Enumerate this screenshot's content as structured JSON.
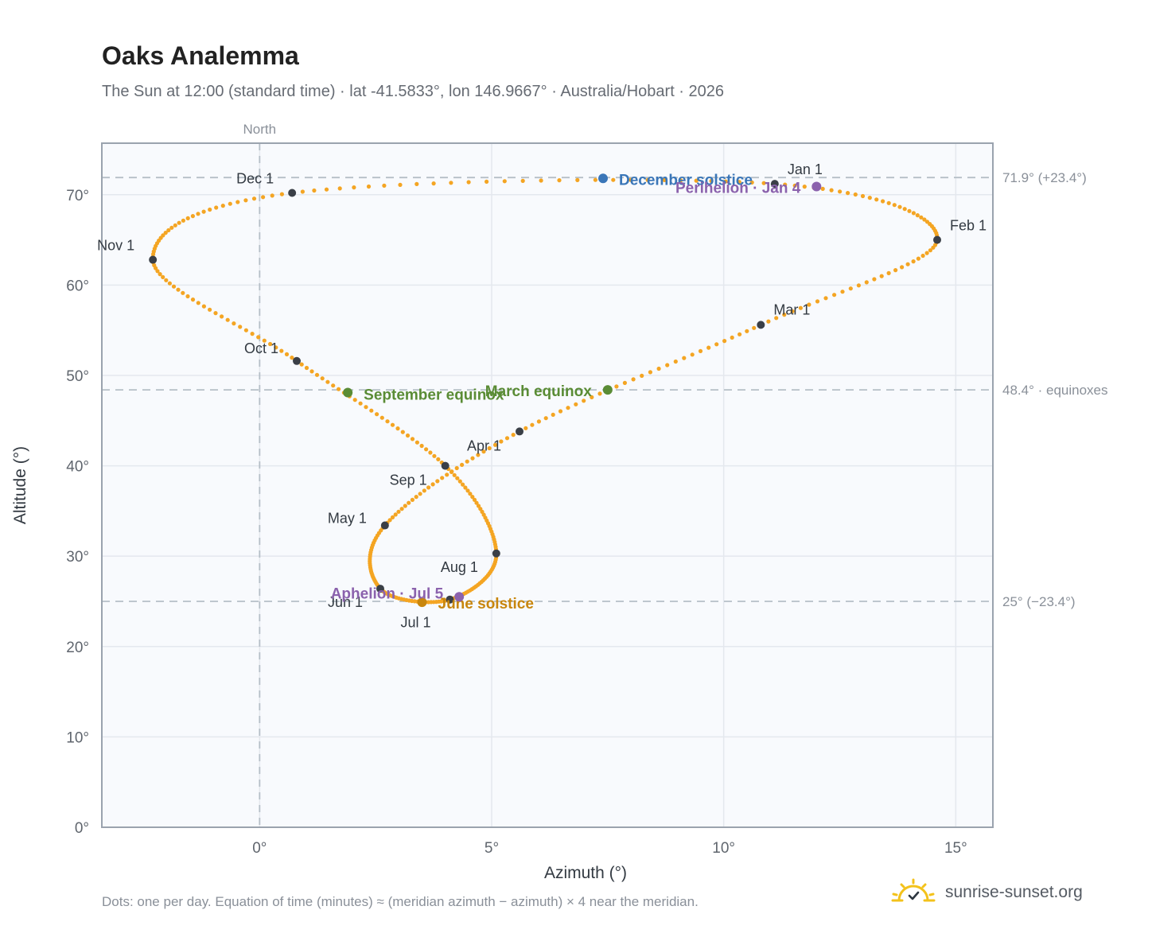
{
  "header": {
    "title": "Oaks Analemma",
    "subtitle": "The Sun at 12:00 (standard time) · lat -41.5833°, lon 146.9667° · Australia/Hobart · 2026"
  },
  "footer": {
    "note": "Dots: one per day. Equation of time (minutes) ≈ (meridian azimuth − azimuth) × 4 near the meridian.",
    "brand": "sunrise-sunset.org"
  },
  "chart_data": {
    "type": "scatter",
    "xlabel": "Azimuth (°)",
    "ylabel": "Altitude (°)",
    "xlim": [
      -3.4,
      15.8
    ],
    "ylim": [
      0,
      75.7
    ],
    "x_ticks": [
      {
        "value": 0,
        "label": "0°"
      },
      {
        "value": 5,
        "label": "5°"
      },
      {
        "value": 10,
        "label": "10°"
      },
      {
        "value": 15,
        "label": "15°"
      }
    ],
    "y_ticks": [
      {
        "value": 0,
        "label": "0°"
      },
      {
        "value": 10,
        "label": "10°"
      },
      {
        "value": 20,
        "label": "20°"
      },
      {
        "value": 30,
        "label": "30°"
      },
      {
        "value": 40,
        "label": "40°"
      },
      {
        "value": 50,
        "label": "50°"
      },
      {
        "value": 60,
        "label": "60°"
      },
      {
        "value": 70,
        "label": "70°"
      }
    ],
    "grid": true,
    "meridian": {
      "x": 0,
      "label": "North"
    },
    "reference_lines": [
      {
        "y": 71.9,
        "label": "71.9° (+23.4°)"
      },
      {
        "y": 48.4,
        "label": "48.4° · equinoxes"
      },
      {
        "y": 25.0,
        "label": "25° (−23.4°)"
      }
    ],
    "month_points": [
      {
        "label": "Jan 1",
        "x": 11.1,
        "y": 71.2
      },
      {
        "label": "Feb 1",
        "x": 14.6,
        "y": 65.0
      },
      {
        "label": "Mar 1",
        "x": 10.8,
        "y": 55.6
      },
      {
        "label": "Apr 1",
        "x": 5.6,
        "y": 43.8
      },
      {
        "label": "May 1",
        "x": 2.7,
        "y": 33.4
      },
      {
        "label": "Jun 1",
        "x": 2.6,
        "y": 26.4
      },
      {
        "label": "Jul 1",
        "x": 4.1,
        "y": 25.2
      },
      {
        "label": "Aug 1",
        "x": 5.1,
        "y": 30.3
      },
      {
        "label": "Sep 1",
        "x": 4.0,
        "y": 40.0
      },
      {
        "label": "Oct 1",
        "x": 0.8,
        "y": 51.6
      },
      {
        "label": "Nov 1",
        "x": -2.3,
        "y": 62.8
      },
      {
        "label": "Dec 1",
        "x": 0.7,
        "y": 70.2
      }
    ],
    "events": [
      {
        "label": "December solstice",
        "x": 7.4,
        "y": 71.8,
        "color": "#3a76b8"
      },
      {
        "label": "Perihelion · Jan 4",
        "x": 12.0,
        "y": 70.9,
        "color": "#8b62ad"
      },
      {
        "label": "March equinox",
        "x": 7.5,
        "y": 48.4,
        "color": "#5a8c35"
      },
      {
        "label": "September equinox",
        "x": 1.9,
        "y": 48.1,
        "color": "#5a8c35"
      },
      {
        "label": "June solstice",
        "x": 3.5,
        "y": 24.9,
        "color": "#c8860d"
      },
      {
        "label": "Aphelion · Jul 5",
        "x": 4.3,
        "y": 25.5,
        "color": "#8b62ad"
      }
    ],
    "colors": {
      "daily_dots": "#f4a523",
      "month_marker": "#3a3f47",
      "grid": "#e4e8ee",
      "reference_line": "#b5bfc7",
      "plot_background": "#f8fafd"
    }
  }
}
